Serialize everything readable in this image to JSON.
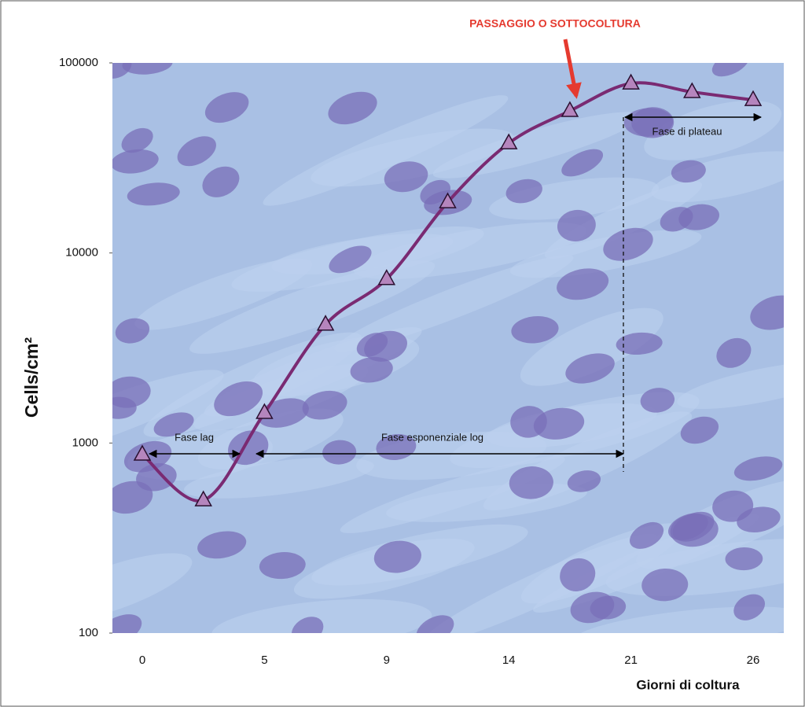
{
  "chart_data": {
    "type": "line",
    "y_label": "Cells/cm²",
    "x_label": "Giorni di coltura",
    "categories": [
      "0",
      null,
      "5",
      null,
      "9",
      null,
      "14",
      null,
      "21",
      null,
      "26"
    ],
    "series": [
      {
        "name": "Cells/cm²",
        "color": "#7a2a72",
        "marker_color": "#b585bd",
        "values": [
          870,
          500,
          1440,
          4200,
          7300,
          18500,
          37800,
          55900,
          78000,
          70300,
          63800
        ]
      }
    ],
    "log_y": true,
    "ylim": [
      100,
      100000
    ],
    "yticks": [
      100,
      1000,
      10000,
      100000
    ],
    "annotations": [
      "PASSAGGIO O SOTTOCOLTURA",
      "Fase lag",
      "Fase esponenziale log",
      "Fase di plateau"
    ]
  }
}
